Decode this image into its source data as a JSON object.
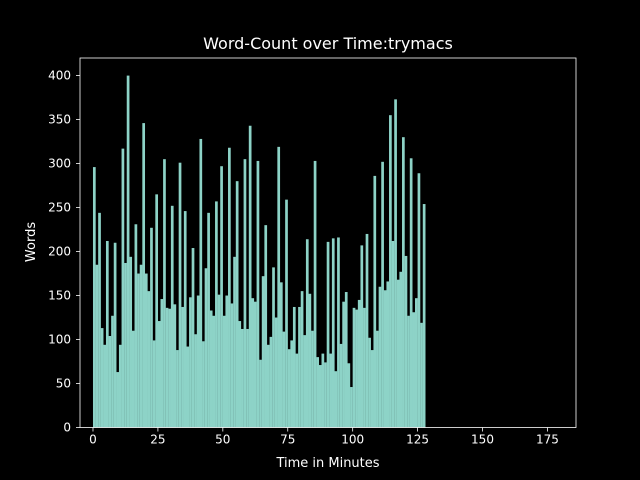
{
  "colors": {
    "background": "#000000",
    "bar": "#8dd3c7",
    "text": "#ffffff",
    "axis": "#ffffff"
  },
  "chart_data": {
    "type": "bar",
    "title": "Word-Count over Time:trymacs",
    "xlabel": "Time in Minutes",
    "ylabel": "Words",
    "xlim": [
      -5,
      186
    ],
    "ylim": [
      0,
      420
    ],
    "xticks": [
      0,
      25,
      50,
      75,
      100,
      125,
      150,
      175
    ],
    "yticks": [
      0,
      50,
      100,
      150,
      200,
      250,
      300,
      350,
      400
    ],
    "grid": false,
    "legend": "none",
    "x_start": 0,
    "values": [
      296,
      185,
      244,
      113,
      94,
      212,
      104,
      127,
      210,
      63,
      94,
      317,
      187,
      400,
      194,
      110,
      231,
      175,
      185,
      346,
      175,
      155,
      227,
      99,
      265,
      121,
      146,
      305,
      136,
      135,
      252,
      140,
      88,
      301,
      137,
      246,
      92,
      148,
      204,
      106,
      150,
      328,
      98,
      181,
      244,
      133,
      127,
      257,
      151,
      297,
      127,
      150,
      318,
      141,
      194,
      280,
      121,
      112,
      305,
      112,
      343,
      147,
      143,
      303,
      77,
      172,
      230,
      94,
      103,
      182,
      125,
      319,
      165,
      109,
      259,
      89,
      99,
      137,
      84,
      137,
      155,
      105,
      214,
      152,
      110,
      303,
      80,
      71,
      84,
      74,
      211,
      84,
      215,
      64,
      216,
      95,
      143,
      154,
      73,
      46,
      136,
      134,
      145,
      207,
      136,
      220,
      102,
      88,
      286,
      110,
      160,
      302,
      156,
      166,
      355,
      212,
      373,
      168,
      177,
      330,
      195,
      127,
      306,
      131,
      147,
      289,
      119,
      254
    ]
  }
}
